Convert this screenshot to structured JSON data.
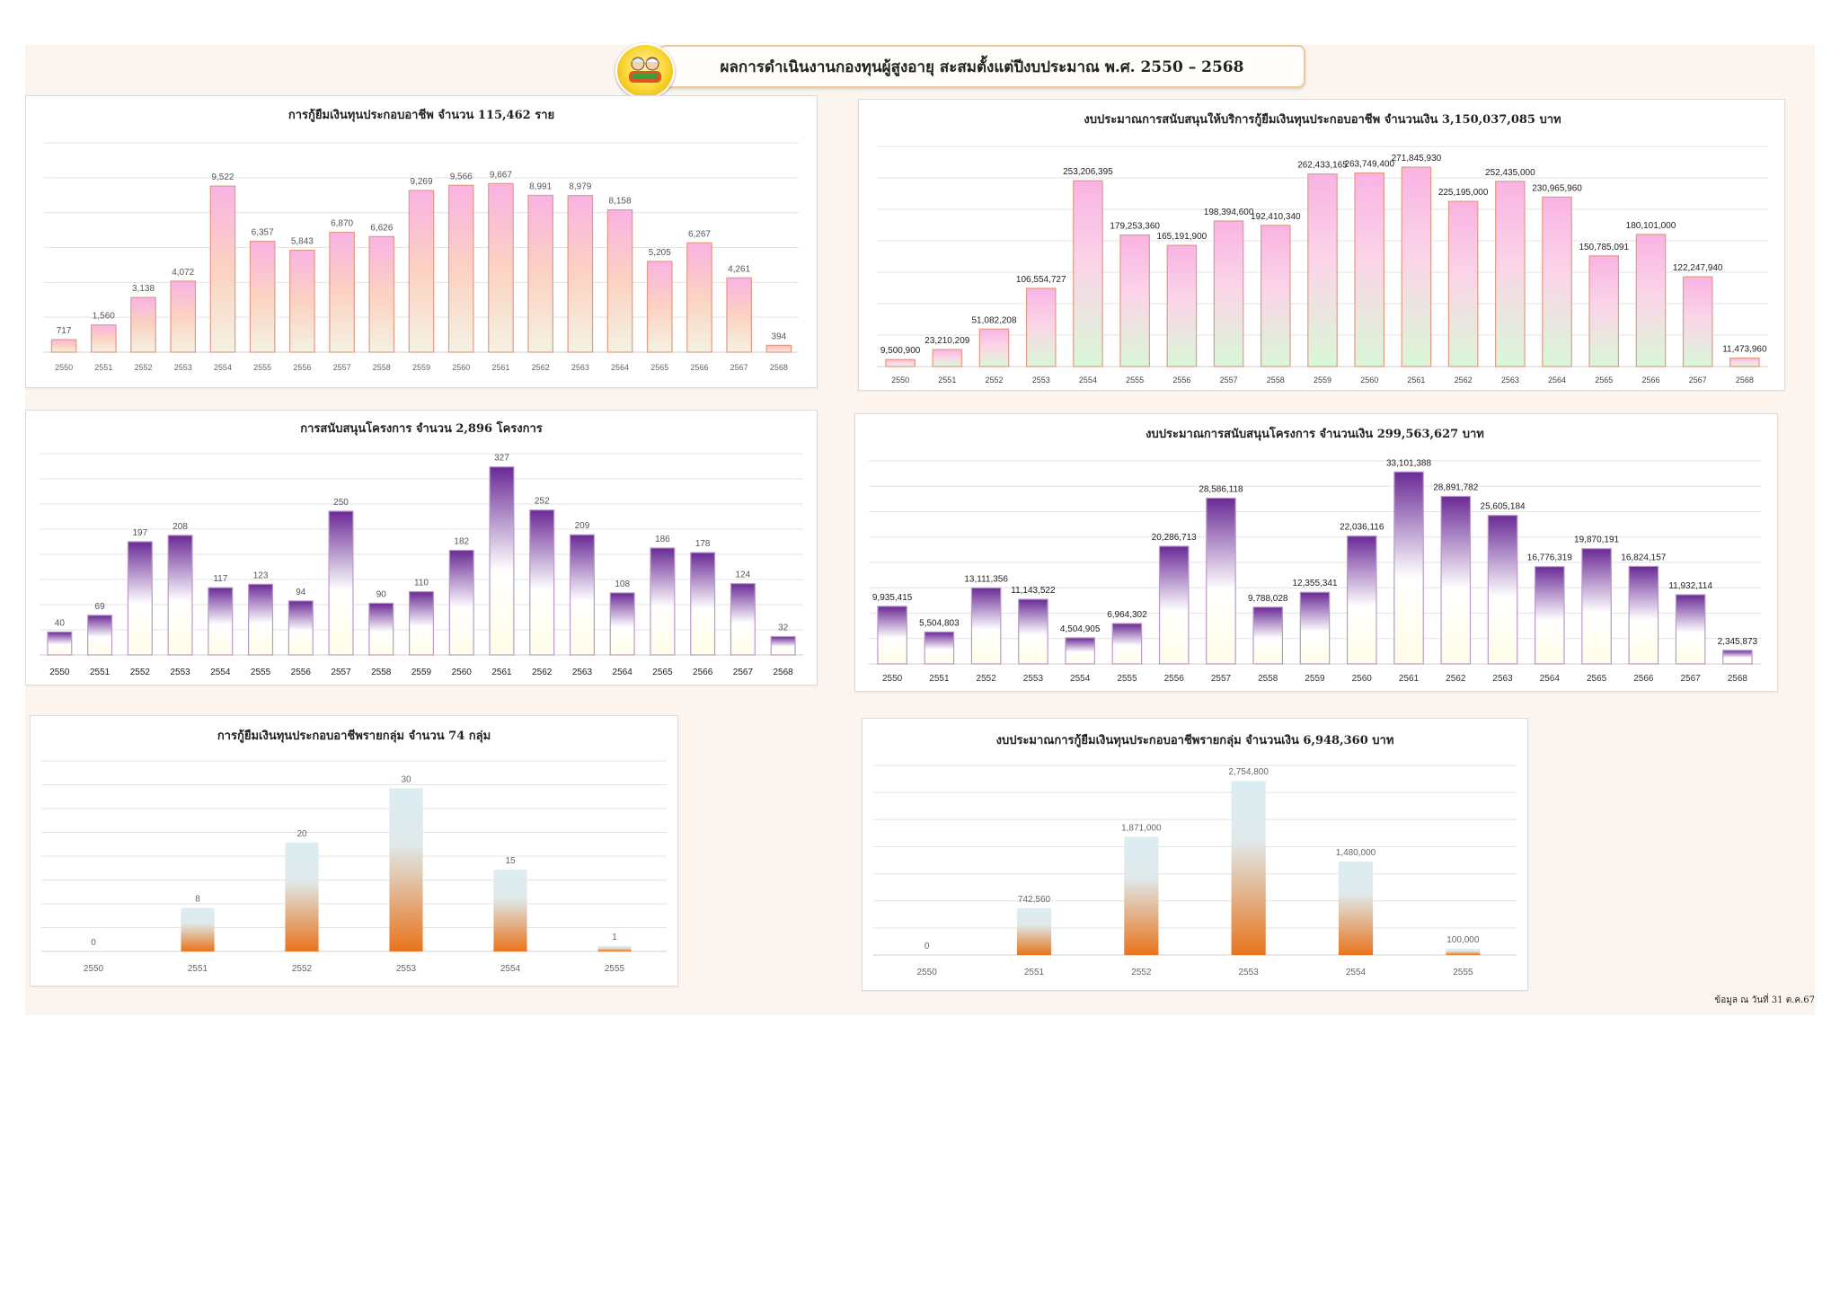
{
  "page": {
    "title": "ผลการดำเนินงานกองทุนผู้สูงอายุ สะสมตั้งแต่ปีงบประมาณ พ.ศ. 2550 – 2568",
    "footnote": "ข้อมูล ณ วันที่ 31 ต.ค.67",
    "logo_icon": "elderly-fund-logo"
  },
  "colors": {
    "pink_top": "#f9b3e3",
    "pink_mid": "#fcd2c2",
    "pink_bottom": "#f4f2e2",
    "pink_stroke": "#e39a86",
    "green_bottom": "#d9f7d7",
    "purple_top": "#6a2a96",
    "purple_mid": "#ffffff",
    "purple_bottom": "#fffde6",
    "orange_top": "#dbedf2",
    "orange_bottom": "#e8741c"
  },
  "chart_data": [
    {
      "type": "bar",
      "title": "การกู้ยืมเงินทุนประกอบอาชีพ จำนวน 115,462  ราย",
      "categories": [
        "2550",
        "2551",
        "2552",
        "2553",
        "2554",
        "2555",
        "2556",
        "2557",
        "2558",
        "2559",
        "2560",
        "2561",
        "2562",
        "2563",
        "2564",
        "2565",
        "2566",
        "2567",
        "2568"
      ],
      "values": [
        717,
        1560,
        3138,
        4072,
        9522,
        6357,
        5843,
        6870,
        6626,
        9269,
        9566,
        9667,
        8991,
        8979,
        8158,
        5205,
        6267,
        4261,
        394
      ],
      "labels": [
        "717",
        "1,560",
        "3,138",
        "4,072",
        "9,522",
        "6,357",
        "5,843",
        "6,870",
        "6,626",
        "9,269",
        "9,566",
        "9,667",
        "8,991",
        "8,979",
        "8,158",
        "5,205",
        "6,267",
        "4,261",
        "394"
      ],
      "ylim": [
        0,
        12000
      ],
      "grid": true,
      "style": "pink"
    },
    {
      "type": "bar",
      "title": "งบประมาณการสนับสนุนให้บริการกู้ยืมเงินทุนประกอบอาชีพ จำนวนเงิน  3,150,037,085 บาท",
      "categories": [
        "2550",
        "2551",
        "2552",
        "2553",
        "2554",
        "2555",
        "2556",
        "2557",
        "2558",
        "2559",
        "2560",
        "2561",
        "2562",
        "2563",
        "2564",
        "2565",
        "2566",
        "2567",
        "2568"
      ],
      "values": [
        9500900,
        23210209,
        51082208,
        106554727,
        253206395,
        179253360,
        165191900,
        198394600,
        192410340,
        262433165,
        263749400,
        271845930,
        225195000,
        252435000,
        230965960,
        150785091,
        180101000,
        122247940,
        11473960
      ],
      "labels": [
        "9,500,900",
        "23,210,209",
        "51,082,208",
        "106,554,727",
        "253,206,395",
        "179,253,360",
        "165,191,900",
        "198,394,600",
        "192,410,340",
        "262,433,165",
        "263,749,400",
        "271,845,930",
        "225,195,000",
        "252,435,000",
        "230,965,960",
        "150,785,091",
        "180,101,000",
        "122,247,940",
        "11,473,960"
      ],
      "ylim": [
        0,
        300000000
      ],
      "grid": true,
      "style": "pink-green"
    },
    {
      "type": "bar",
      "title": "การสนับสนุนโครงการ จำนวน 2,896 โครงการ",
      "categories": [
        "2550",
        "2551",
        "2552",
        "2553",
        "2554",
        "2555",
        "2556",
        "2557",
        "2558",
        "2559",
        "2560",
        "2561",
        "2562",
        "2563",
        "2564",
        "2565",
        "2566",
        "2567",
        "2568"
      ],
      "values": [
        40,
        69,
        197,
        208,
        117,
        123,
        94,
        250,
        90,
        110,
        182,
        327,
        252,
        209,
        108,
        186,
        178,
        124,
        32
      ],
      "labels": [
        "40",
        "69",
        "197",
        "208",
        "117",
        "123",
        "94",
        "250",
        "90",
        "110",
        "182",
        "327",
        "252",
        "209",
        "108",
        "186",
        "178",
        "124",
        "32"
      ],
      "ylim": [
        0,
        350
      ],
      "grid": true,
      "style": "purple"
    },
    {
      "type": "bar",
      "title": "งบประมาณการสนับสนุนโครงการ จำนวนเงิน 299,563,627  บาท",
      "categories": [
        "2550",
        "2551",
        "2552",
        "2553",
        "2554",
        "2555",
        "2556",
        "2557",
        "2558",
        "2559",
        "2560",
        "2561",
        "2562",
        "2563",
        "2564",
        "2565",
        "2566",
        "2567",
        "2568"
      ],
      "values": [
        9935415,
        5504803,
        13111356,
        11143522,
        4504905,
        6964302,
        20286713,
        28586118,
        9788028,
        12355341,
        22036116,
        33101388,
        28891782,
        25605184,
        16776319,
        19870191,
        16824157,
        11932114,
        2345873
      ],
      "labels": [
        "9,935,415",
        "5,504,803",
        "13,111,356",
        "11,143,522",
        "4,504,905",
        "6,964,302",
        "20,286,713",
        "28,586,118",
        "9,788,028",
        "12,355,341",
        "22,036,116",
        "33,101,388",
        "28,891,782",
        "25,605,184",
        "16,776,319",
        "19,870,191",
        "16,824,157",
        "11,932,114",
        "2,345,873"
      ],
      "ylim": [
        0,
        35000000
      ],
      "grid": true,
      "style": "purple"
    },
    {
      "type": "bar",
      "title": "การกู้ยืมเงินทุนประกอบอาชีพรายกลุ่ม จำนวน 74 กลุ่ม",
      "categories": [
        "2550",
        "2551",
        "2552",
        "2553",
        "2554",
        "2555"
      ],
      "values": [
        0,
        8,
        20,
        30,
        15,
        1
      ],
      "labels": [
        "0",
        "8",
        "20",
        "30",
        "15",
        "1"
      ],
      "ylim": [
        0,
        35
      ],
      "grid": true,
      "style": "orange"
    },
    {
      "type": "bar",
      "title": "งบประมาณการกู้ยืมเงินทุนประกอบอาชีพรายกลุ่ม จำนวนเงิน 6,948,360 บาท",
      "categories": [
        "2550",
        "2551",
        "2552",
        "2553",
        "2554",
        "2555"
      ],
      "values": [
        0,
        742560,
        1871000,
        2754800,
        1480000,
        100000
      ],
      "labels": [
        "0",
        "742,560",
        "1,871,000",
        "2,754,800",
        "1,480,000",
        "100,000"
      ],
      "ylim": [
        0,
        3000000
      ],
      "grid": true,
      "style": "orange"
    }
  ]
}
